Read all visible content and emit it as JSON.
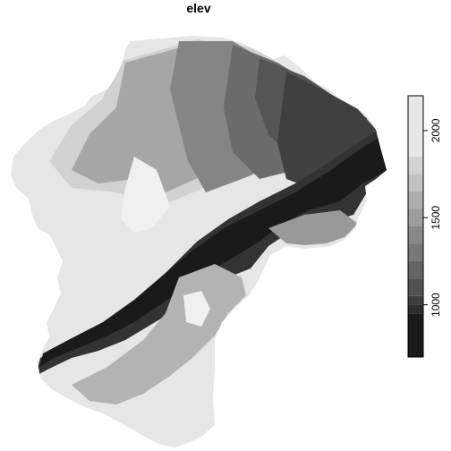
{
  "title": "elev",
  "colors": {
    "outline": "#000000",
    "ramp_dark": "#1a1a1a",
    "ramp_light": "#e6e6e6"
  },
  "legend": {
    "range": [
      700,
      2200
    ],
    "breaks": [
      700,
      950,
      1000,
      1050,
      1150,
      1250,
      1350,
      1450,
      1550,
      1650,
      1750,
      1850,
      2200
    ],
    "ticks": [
      {
        "value": 1000,
        "label": "1000"
      },
      {
        "value": 1500,
        "label": "1500"
      },
      {
        "value": 2000,
        "label": "2000"
      }
    ]
  }
}
